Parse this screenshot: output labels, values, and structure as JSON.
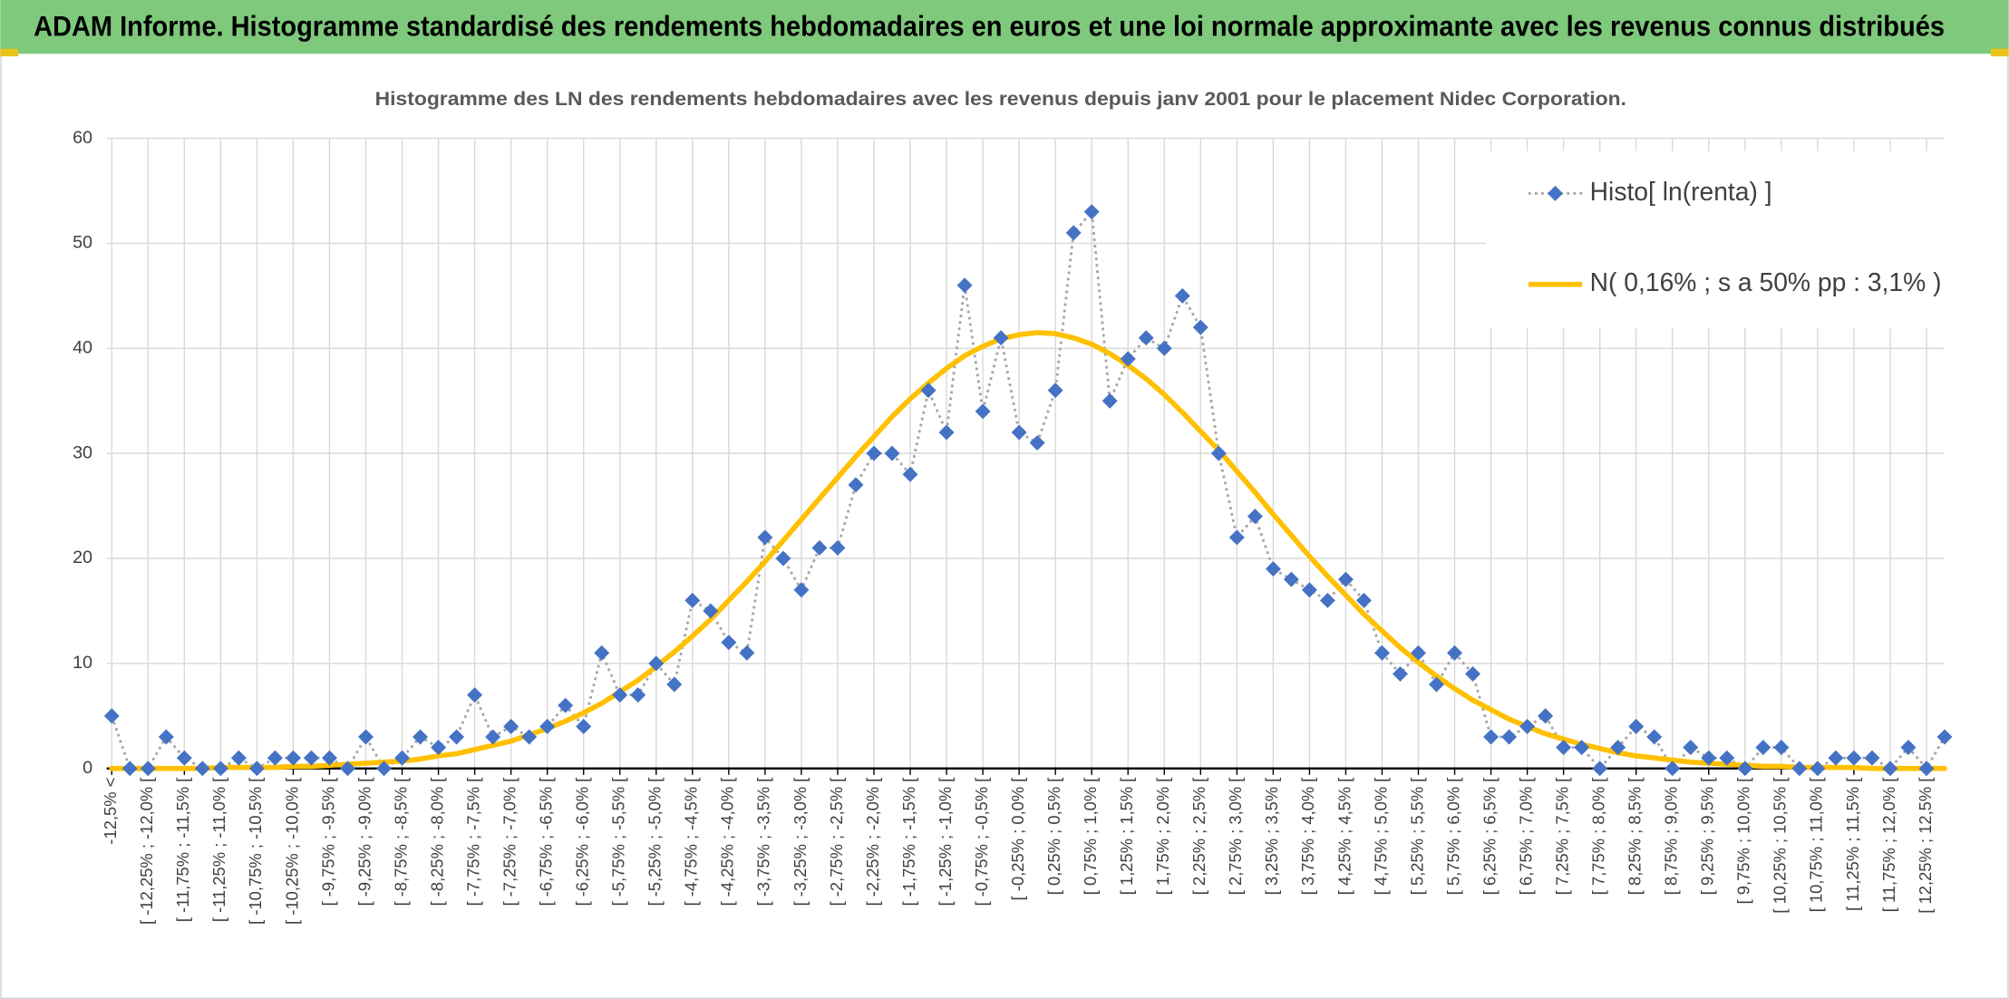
{
  "header": {
    "title": "ADAM Informe. Histogramme standardisé des rendements hebdomadaires en euros et une loi normale approximante avec les revenus connus distribués"
  },
  "chart_data": {
    "type": "line",
    "title": "Histogramme des LN des rendements hebdomadaires avec les revenus depuis janv 2001 pour le placement Nidec Corporation.",
    "categories": [
      "-12,5% <",
      null,
      "[ -12,25% ; -12,0% [",
      null,
      "[ -11,75% ; -11,5% [",
      null,
      "[ -11,25% ; -11,0% [",
      null,
      "[ -10,75% ; -10,5% [",
      null,
      "[ -10,25% ; -10,0% [",
      null,
      "[ -9,75% ; -9,5% [",
      null,
      "[ -9,25% ; -9,0% [",
      null,
      "[ -8,75% ; -8,5% [",
      null,
      "[ -8,25% ; -8,0% [",
      null,
      "[ -7,75% ; -7,5% [",
      null,
      "[ -7,25% ; -7,0% [",
      null,
      "[ -6,75% ; -6,5% [",
      null,
      "[ -6,25% ; -6,0% [",
      null,
      "[ -5,75% ; -5,5% [",
      null,
      "[ -5,25% ; -5,0% [",
      null,
      "[ -4,75% ; -4,5% [",
      null,
      "[ -4,25% ; -4,0% [",
      null,
      "[ -3,75% ; -3,5% [",
      null,
      "[ -3,25% ; -3,0% [",
      null,
      "[ -2,75% ; -2,5% [",
      null,
      "[ -2,25% ; -2,0% [",
      null,
      "[ -1,75% ; -1,5% [",
      null,
      "[ -1,25% ; -1,0% [",
      null,
      "[ -0,75% ; -0,5% [",
      null,
      "[ -0,25% ; 0,0% [",
      null,
      "[ 0,25% ; 0,5% [",
      null,
      "[ 0,75% ; 1,0% [",
      null,
      "[ 1,25% ; 1,5% [",
      null,
      "[ 1,75% ; 2,0% [",
      null,
      "[ 2,25% ; 2,5% [",
      null,
      "[ 2,75% ; 3,0% [",
      null,
      "[ 3,25% ; 3,5% [",
      null,
      "[ 3,75% ; 4,0% [",
      null,
      "[ 4,25% ; 4,5% [",
      null,
      "[ 4,75% ; 5,0% [",
      null,
      "[ 5,25% ; 5,5% [",
      null,
      "[ 5,75% ; 6,0% [",
      null,
      "[ 6,25% ; 6,5% [",
      null,
      "[ 6,75% ; 7,0% [",
      null,
      "[ 7,25% ; 7,5% [",
      null,
      "[ 7,75% ; 8,0% [",
      null,
      "[ 8,25% ; 8,5% [",
      null,
      "[ 8,75% ; 9,0% [",
      null,
      "[ 9,25% ; 9,5% [",
      null,
      "[ 9,75% ; 10,0% [",
      null,
      "[ 10,25% ; 10,5% [",
      null,
      "[ 10,75% ; 11,0% [",
      null,
      "[ 11,25% ; 11,5% [",
      null,
      "[ 11,75% ; 12,0% [",
      null,
      "[ 12,25% ; 12,5% [",
      null
    ],
    "series": [
      {
        "name": "Histo[ ln(renta) ]",
        "color": "#4472c4",
        "line_color": "#a5a5a5",
        "values": [
          5,
          0,
          0,
          3,
          1,
          0,
          0,
          1,
          0,
          1,
          1,
          1,
          1,
          0,
          3,
          0,
          1,
          3,
          2,
          3,
          7,
          3,
          4,
          3,
          4,
          6,
          4,
          11,
          7,
          7,
          10,
          8,
          16,
          15,
          12,
          11,
          22,
          20,
          17,
          21,
          21,
          27,
          30,
          30,
          28,
          36,
          32,
          46,
          34,
          41,
          32,
          31,
          36,
          51,
          53,
          35,
          39,
          41,
          40,
          45,
          42,
          30,
          22,
          24,
          19,
          18,
          17,
          16,
          18,
          16,
          11,
          9,
          11,
          8,
          11,
          9,
          3,
          3,
          4,
          5,
          2,
          2,
          0,
          2,
          4,
          3,
          0,
          2,
          1,
          1,
          0,
          2,
          2,
          0,
          0,
          1,
          1,
          1,
          0,
          2,
          0,
          3
        ]
      },
      {
        "name": "N( 0,16% ; s a 50% pp : 3,1% )",
        "color": "#ffc000",
        "values": [
          0.0,
          0.0,
          0.0,
          0.0,
          0.0,
          0.0,
          0.1,
          0.1,
          0.1,
          0.1,
          0.2,
          0.2,
          0.3,
          0.4,
          0.5,
          0.6,
          0.7,
          0.9,
          1.2,
          1.4,
          1.8,
          2.2,
          2.6,
          3.2,
          3.8,
          4.5,
          5.3,
          6.2,
          7.3,
          8.4,
          9.7,
          11.1,
          12.6,
          14.2,
          16.0,
          17.8,
          19.7,
          21.7,
          23.7,
          25.7,
          27.7,
          29.7,
          31.6,
          33.5,
          35.2,
          36.7,
          38.1,
          39.3,
          40.2,
          40.9,
          41.3,
          41.5,
          41.4,
          41.0,
          40.4,
          39.5,
          38.4,
          37.1,
          35.6,
          33.9,
          32.1,
          30.3,
          28.3,
          26.3,
          24.2,
          22.2,
          20.2,
          18.3,
          16.5,
          14.7,
          13.1,
          11.5,
          10.1,
          8.8,
          7.6,
          6.5,
          5.6,
          4.7,
          4.0,
          3.3,
          2.8,
          2.3,
          1.9,
          1.5,
          1.2,
          1.0,
          0.8,
          0.6,
          0.5,
          0.4,
          0.3,
          0.2,
          0.2,
          0.1,
          0.1,
          0.1,
          0.1,
          0.0,
          0.0,
          0.0,
          0.0,
          0.0
        ]
      }
    ],
    "ylim": [
      0,
      60
    ],
    "yticks": [
      0,
      10,
      20,
      30,
      40,
      50,
      60
    ],
    "grid": true,
    "legend": "upper right"
  }
}
